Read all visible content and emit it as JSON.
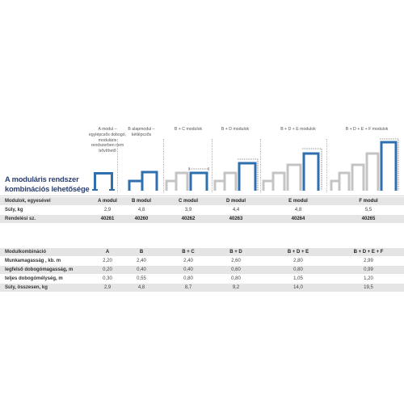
{
  "title": [
    "A moduláris rendszer",
    "kombinációs lehetősége"
  ],
  "columns": [
    {
      "key": "A",
      "header": [
        "A modul –",
        "egylépcsős dobogó,",
        "moduláris",
        "rendszerben nem",
        "bővíthető"
      ]
    },
    {
      "key": "B",
      "header": [
        "B alapmodul –",
        "kétlépcsős"
      ]
    },
    {
      "key": "C",
      "header": [
        "B + C modulok"
      ]
    },
    {
      "key": "D",
      "header": [
        "B + D modulok"
      ]
    },
    {
      "key": "E",
      "header": [
        "B + D + E modulok"
      ]
    },
    {
      "key": "F",
      "header": [
        "B + D + E + F modulok"
      ]
    }
  ],
  "table1": [
    {
      "label": "Modulok, egyesével",
      "values": [
        "A modul",
        "B modul",
        "C modul",
        "D modul",
        "E modul",
        "F modul"
      ],
      "grey": true,
      "bold": true
    },
    {
      "label": "Súly, kg",
      "values": [
        "2,9",
        "4,8",
        "3,9",
        "4,4",
        "4,8",
        "5,5"
      ],
      "grey": false,
      "bold": false
    },
    {
      "label": "Rendelési sz.",
      "values": [
        "40261",
        "40260",
        "40262",
        "40263",
        "40264",
        "40265"
      ],
      "grey": true,
      "bold": true
    }
  ],
  "table2": [
    {
      "label": "Modulkombináció",
      "values": [
        "A",
        "B",
        "B + C",
        "B + D",
        "B + D + E",
        "B + D + E + F"
      ],
      "grey": true,
      "bold": true
    },
    {
      "label": "Munkamagasság , kb. m",
      "values": [
        "2,20",
        "2,40",
        "2,40",
        "2,60",
        "2,80",
        "2,99"
      ],
      "grey": false,
      "bold": false
    },
    {
      "label": "legfelső dobogómagasság, m",
      "values": [
        "0,20",
        "0,40",
        "0,40",
        "0,60",
        "0,80",
        "0,99"
      ],
      "grey": true,
      "bold": false
    },
    {
      "label": "teljes dobogómélység, m",
      "values": [
        "0,30",
        "0,55",
        "0,80",
        "0,80",
        "1,05",
        "1,20"
      ],
      "grey": false,
      "bold": false
    },
    {
      "label": "Súly, összesen, kg",
      "values": [
        "2,9",
        "4,8",
        "8,7",
        "9,2",
        "14,0",
        "19,5"
      ],
      "grey": true,
      "bold": false
    }
  ],
  "colors": {
    "blue": "#2f6fae",
    "grey": "#c4c4c4",
    "title": "#2a3f73",
    "row": "#e5e5e5"
  }
}
